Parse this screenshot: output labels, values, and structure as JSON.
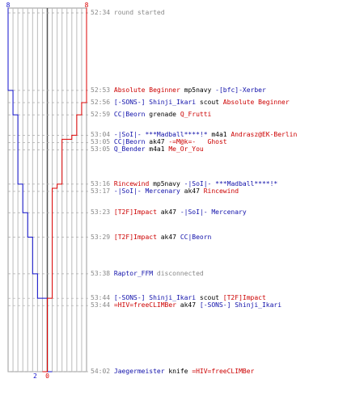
{
  "chart_data": {
    "type": "line",
    "title": "",
    "series": [
      {
        "name": "",
        "color": "#1010cc",
        "start": 8,
        "end": 2,
        "steps": [
          "52:53",
          "52:59",
          "53:16",
          "53:23",
          "53:29",
          "53:38",
          "53:44",
          "53:44",
          "54:02"
        ]
      },
      {
        "name": "",
        "color": "#dd0000",
        "start": 8,
        "end": 0,
        "steps": [
          "52:56",
          "52:59",
          "53:04",
          "53:05",
          "53:05",
          "53:16",
          "53:17",
          "53:44",
          "54:02"
        ]
      }
    ],
    "score_labels": {
      "blue_start": "8",
      "blue_end": "2",
      "red_start": "8",
      "red_end": "0"
    },
    "rounds_max": 8
  },
  "events": [
    {
      "time": "52:34",
      "parts": [
        {
          "text": "round started",
          "style": "gray"
        }
      ]
    },
    {
      "time": "52:53",
      "parts": [
        {
          "text": "Absolute Beginner",
          "style": "red"
        },
        {
          "text": " mp5navy ",
          "style": "blk"
        },
        {
          "text": "-[bfc]-Xerber",
          "style": "blue"
        }
      ]
    },
    {
      "time": "52:56",
      "parts": [
        {
          "text": "[-SONS-] Shinji_Ikari",
          "style": "blue"
        },
        {
          "text": " scout ",
          "style": "blk"
        },
        {
          "text": "Absolute Beginner",
          "style": "red"
        }
      ]
    },
    {
      "time": "52:59",
      "parts": [
        {
          "text": "CC|Beorn",
          "style": "blue"
        },
        {
          "text": " grenade ",
          "style": "blk"
        },
        {
          "text": "Q_Frutti",
          "style": "red"
        }
      ]
    },
    {
      "time": "53:04",
      "parts": [
        {
          "text": "-|SoI|- ***Madball****!*",
          "style": "blue"
        },
        {
          "text": " m4a1 ",
          "style": "blk"
        },
        {
          "text": "Andrasz@EK-Berlin",
          "style": "red"
        }
      ]
    },
    {
      "time": "53:05",
      "parts": [
        {
          "text": "CC|Beorn",
          "style": "blue"
        },
        {
          "text": " ak47 ",
          "style": "blk"
        },
        {
          "text": "-=M@k=-   Ghost",
          "style": "red"
        }
      ]
    },
    {
      "time": "53:05",
      "parts": [
        {
          "text": "Q_Bender",
          "style": "blue"
        },
        {
          "text": " m4a1 ",
          "style": "blk"
        },
        {
          "text": "Me_Or_You",
          "style": "red"
        }
      ]
    },
    {
      "time": "53:16",
      "parts": [
        {
          "text": "Rincewind",
          "style": "red"
        },
        {
          "text": " mp5navy ",
          "style": "blk"
        },
        {
          "text": "-|SoI|- ***Madball****!*",
          "style": "blue"
        }
      ]
    },
    {
      "time": "53:17",
      "parts": [
        {
          "text": "-|SoI|- Mercenary",
          "style": "blue"
        },
        {
          "text": " ak47 ",
          "style": "blk"
        },
        {
          "text": "Rincewind",
          "style": "red"
        }
      ]
    },
    {
      "time": "53:23",
      "parts": [
        {
          "text": "[T2F]Impact",
          "style": "red"
        },
        {
          "text": " ak47 ",
          "style": "blk"
        },
        {
          "text": "-|SoI|- Mercenary",
          "style": "blue"
        }
      ]
    },
    {
      "time": "53:29",
      "parts": [
        {
          "text": "[T2F]Impact",
          "style": "red"
        },
        {
          "text": " ak47 ",
          "style": "blk"
        },
        {
          "text": "CC|Beorn",
          "style": "blue"
        }
      ]
    },
    {
      "time": "53:38",
      "parts": [
        {
          "text": "Raptor_FFM",
          "style": "blue"
        },
        {
          "text": " disconnected",
          "style": "gray"
        }
      ]
    },
    {
      "time": "53:44",
      "parts": [
        {
          "text": "[-SONS-] Shinji_Ikari",
          "style": "blue"
        },
        {
          "text": " scout ",
          "style": "blk"
        },
        {
          "text": "[T2F]Impact",
          "style": "red"
        }
      ]
    },
    {
      "time": "53:44",
      "parts": [
        {
          "text": "=HIV=freeCLIMBer",
          "style": "red"
        },
        {
          "text": " ak47 ",
          "style": "blk"
        },
        {
          "text": "[-SONS-] Shinji_Ikari",
          "style": "blue"
        }
      ]
    },
    {
      "time": "54:02",
      "parts": [
        {
          "text": "Jaegermeister",
          "style": "blue"
        },
        {
          "text": " knife ",
          "style": "blk"
        },
        {
          "text": "=HIV=freeCLIMBer",
          "style": "red"
        }
      ]
    }
  ]
}
